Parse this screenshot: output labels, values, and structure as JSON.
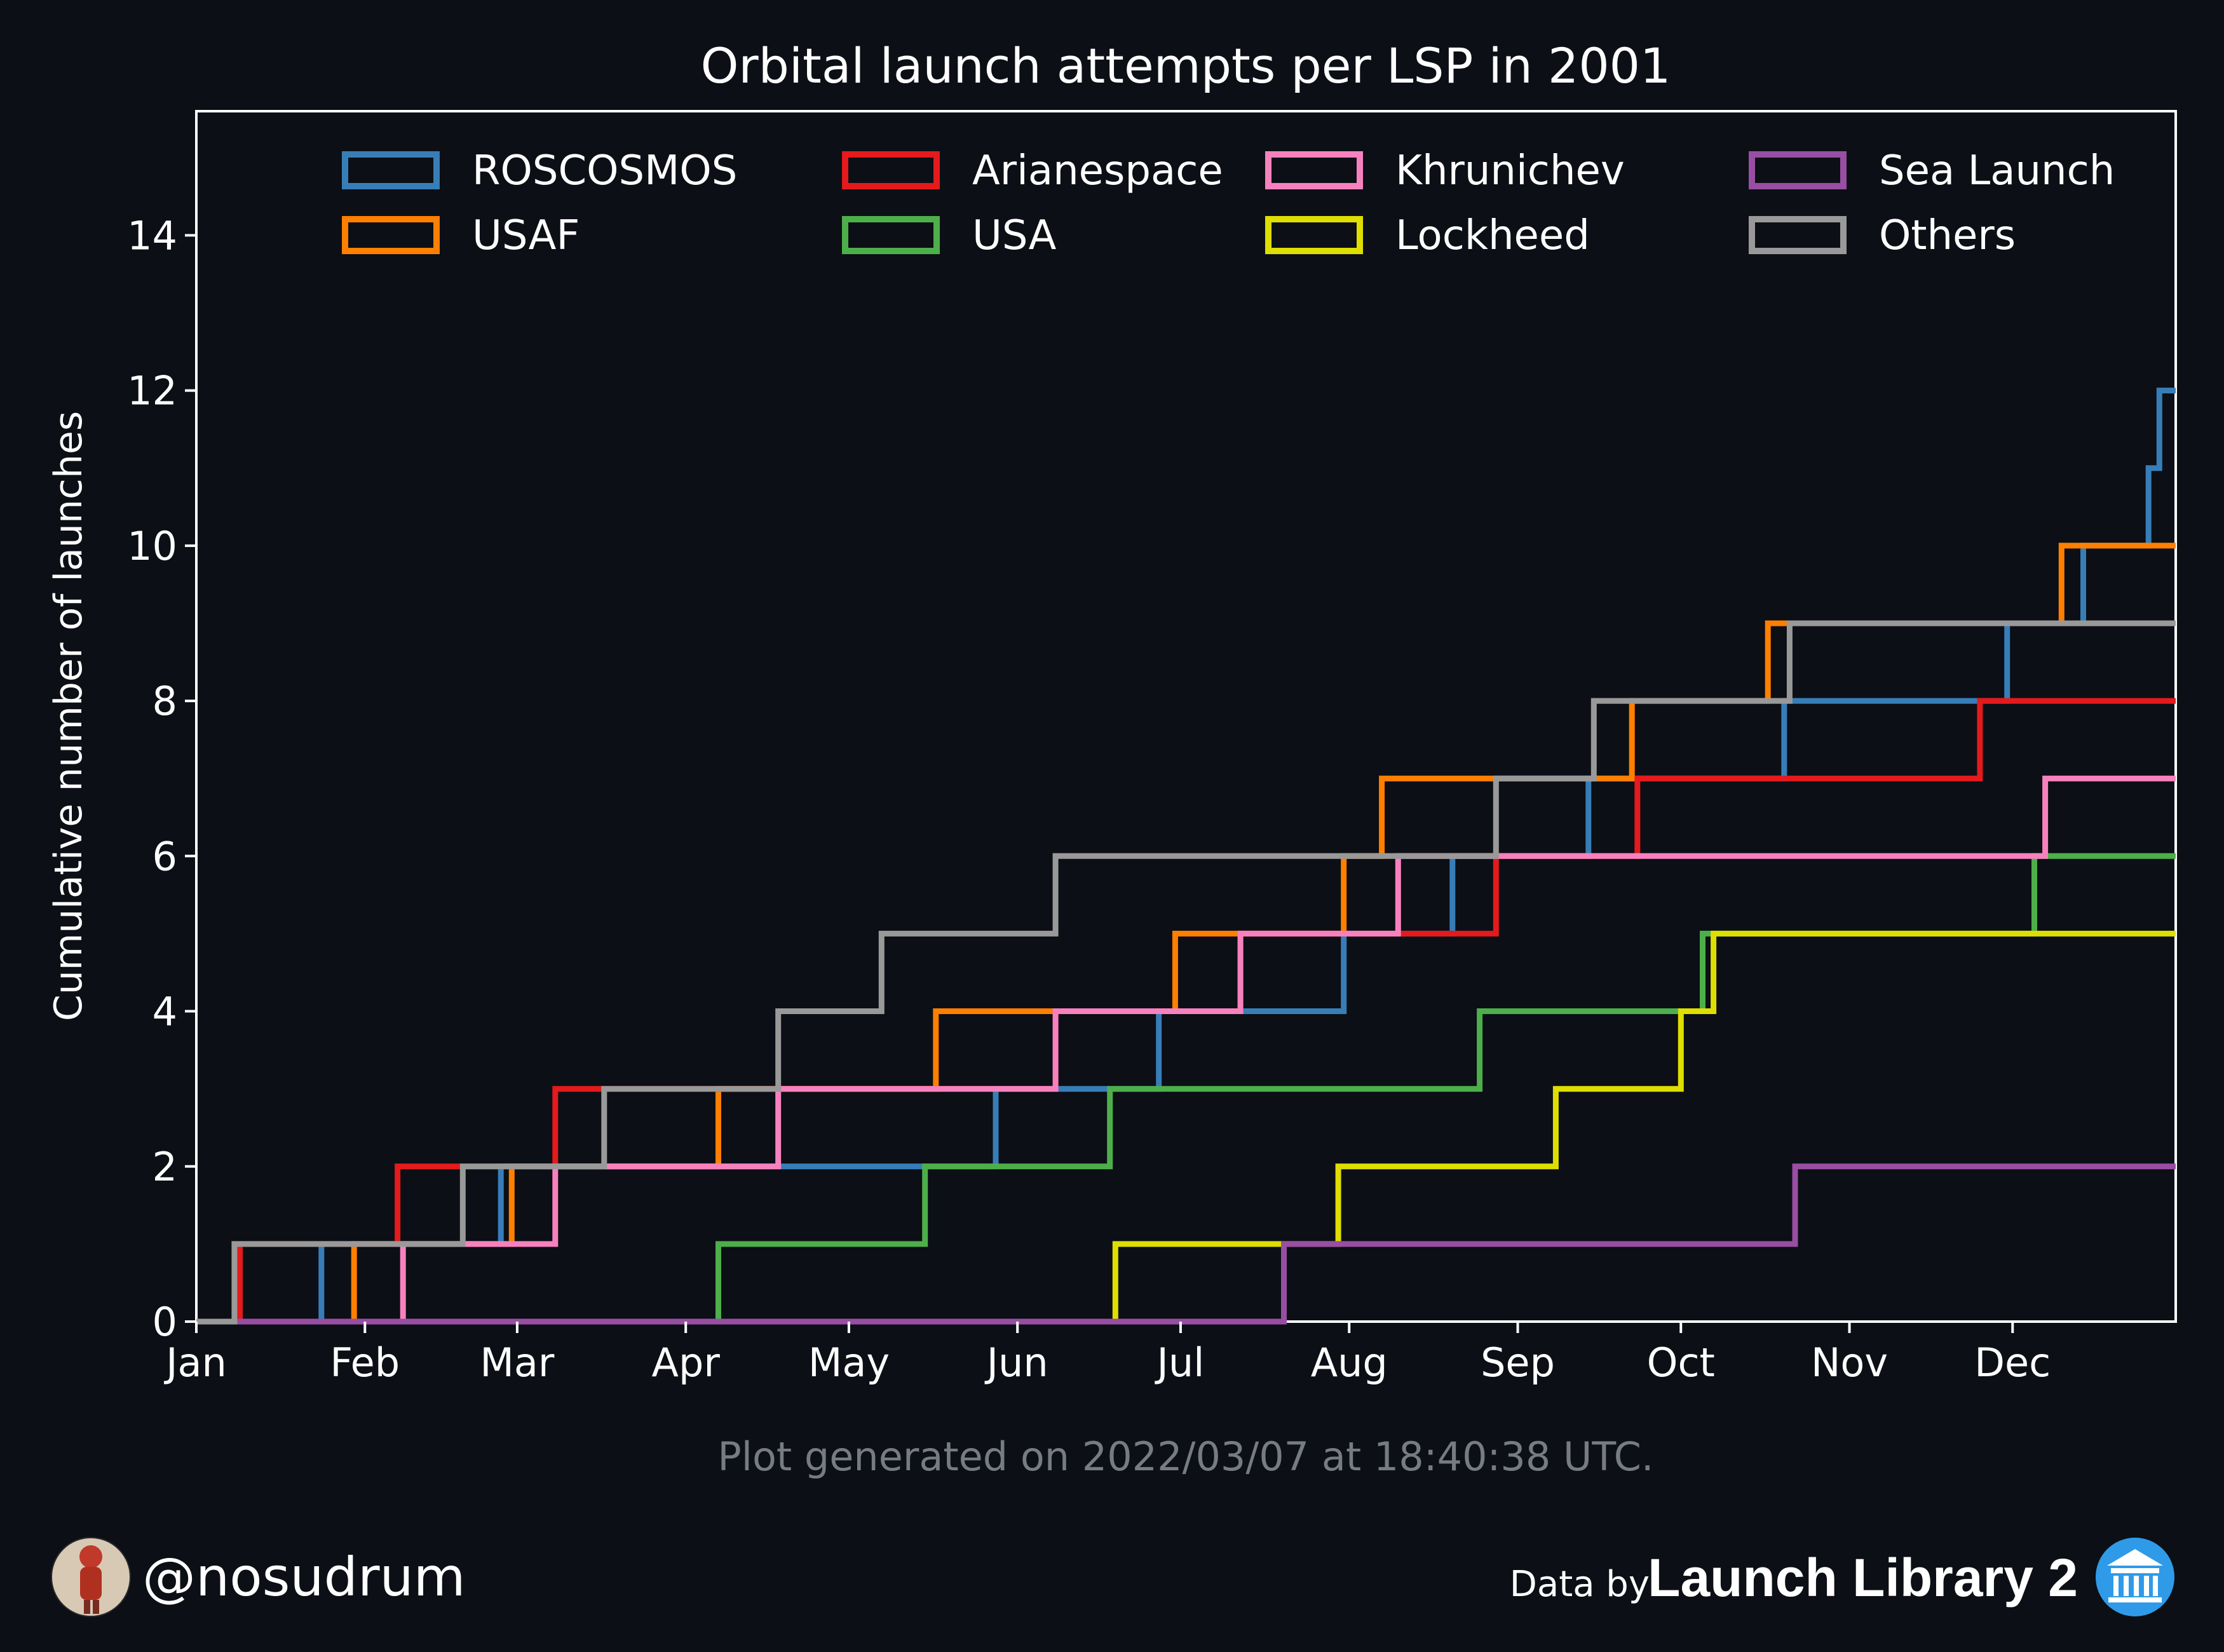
{
  "chart_data": {
    "type": "line",
    "step": "post",
    "title": "Orbital launch attempts per LSP in 2001",
    "xlabel": "",
    "ylabel": "Cumulative number of launches",
    "xlim": [
      "2001-01-01",
      "2001-12-31"
    ],
    "ylim": [
      0,
      15.6
    ],
    "yticks": [
      0,
      2,
      4,
      6,
      8,
      10,
      12,
      14
    ],
    "xticks": [
      {
        "date": "2001-01-01",
        "label": "Jan"
      },
      {
        "date": "2001-02-01",
        "label": "Feb"
      },
      {
        "date": "2001-03-01",
        "label": "Mar"
      },
      {
        "date": "2001-04-01",
        "label": "Apr"
      },
      {
        "date": "2001-05-01",
        "label": "May"
      },
      {
        "date": "2001-06-01",
        "label": "Jun"
      },
      {
        "date": "2001-07-01",
        "label": "Jul"
      },
      {
        "date": "2001-08-01",
        "label": "Aug"
      },
      {
        "date": "2001-09-01",
        "label": "Sep"
      },
      {
        "date": "2001-10-01",
        "label": "Oct"
      },
      {
        "date": "2001-11-01",
        "label": "Nov"
      },
      {
        "date": "2001-12-01",
        "label": "Dec"
      }
    ],
    "grid": false,
    "legend": "top",
    "series": [
      {
        "name": "ROSCOSMOS",
        "color": "#377eb8",
        "x": [
          "2001-01-24",
          "2001-02-26",
          "2001-05-28",
          "2001-06-27",
          "2001-07-31",
          "2001-08-20",
          "2001-09-14",
          "2001-10-20",
          "2001-11-30",
          "2001-12-14",
          "2001-12-26",
          "2001-12-28"
        ],
        "y": [
          1,
          2,
          3,
          4,
          5,
          6,
          7,
          8,
          9,
          10,
          11,
          12
        ]
      },
      {
        "name": "USAF",
        "color": "#ff7f00",
        "x": [
          "2001-01-30",
          "2001-02-28",
          "2001-04-07",
          "2001-05-17",
          "2001-06-30",
          "2001-07-31",
          "2001-08-07",
          "2001-09-22",
          "2001-10-17",
          "2001-12-10"
        ],
        "y": [
          1,
          2,
          3,
          4,
          5,
          6,
          7,
          8,
          9,
          10
        ]
      },
      {
        "name": "Arianespace",
        "color": "#e41a1c",
        "x": [
          "2001-01-09",
          "2001-02-07",
          "2001-03-08",
          "2001-06-08",
          "2001-07-12",
          "2001-08-28",
          "2001-09-23",
          "2001-11-25"
        ],
        "y": [
          1,
          2,
          3,
          4,
          5,
          6,
          7,
          8
        ]
      },
      {
        "name": "USA",
        "color": "#4daf4a",
        "x": [
          "2001-04-07",
          "2001-05-15",
          "2001-06-18",
          "2001-08-25",
          "2001-10-05",
          "2001-12-05"
        ],
        "y": [
          1,
          2,
          3,
          4,
          5,
          6
        ]
      },
      {
        "name": "Khrunichev",
        "color": "#f781bf",
        "x": [
          "2001-02-08",
          "2001-03-08",
          "2001-04-18",
          "2001-06-08",
          "2001-07-12",
          "2001-08-10",
          "2001-12-07"
        ],
        "y": [
          1,
          2,
          3,
          4,
          5,
          6,
          7
        ]
      },
      {
        "name": "Lockheed",
        "color": "#dede00",
        "x": [
          "2001-06-19",
          "2001-07-30",
          "2001-09-08",
          "2001-10-01",
          "2001-10-07"
        ],
        "y": [
          1,
          2,
          3,
          4,
          5
        ]
      },
      {
        "name": "Sea Launch",
        "color": "#984ea3",
        "x": [
          "2001-07-20",
          "2001-10-22"
        ],
        "y": [
          1,
          2
        ]
      },
      {
        "name": "Others",
        "color": "#999999",
        "x": [
          "2001-01-08",
          "2001-02-19",
          "2001-03-17",
          "2001-04-18",
          "2001-05-07",
          "2001-06-08",
          "2001-08-28",
          "2001-09-15",
          "2001-10-21"
        ],
        "y": [
          1,
          2,
          3,
          4,
          5,
          6,
          7,
          8,
          9
        ]
      }
    ]
  },
  "footer": {
    "generated": "Plot generated on 2022/03/07 at 18:40:38 UTC.",
    "handle": "@nosudrum",
    "data_by": "Data by",
    "brand": "Launch Library 2"
  },
  "icons": {
    "avatar": "astronaut-avatar-icon",
    "brand_logo": "launch-library-logo-icon"
  }
}
